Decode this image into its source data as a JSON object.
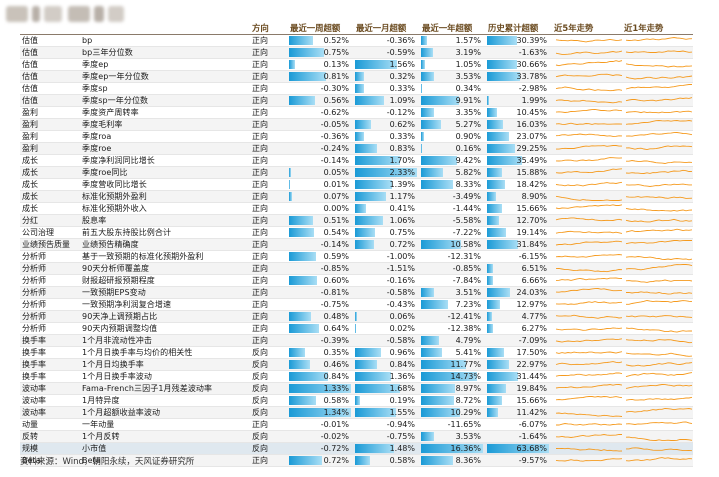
{
  "headers": {
    "category": "",
    "factor": "",
    "direction": "方向",
    "week": "最近一周超额",
    "month": "最近一月超额",
    "year": "最近一年超额",
    "cum": "历史累计超额",
    "trend5y": "近5年走势",
    "trend1y": "近1年走势"
  },
  "colors": {
    "bar": "#1a9ad6",
    "sparkline": "#f59a1e",
    "header_text": "#6a4a1f"
  },
  "rows": [
    {
      "category": "估值",
      "factor": "bp",
      "direction": "正向",
      "week": "0.52%",
      "month": "-0.36%",
      "year": "1.57%",
      "cum": "30.39%"
    },
    {
      "category": "估值",
      "factor": "bp三年分位数",
      "direction": "正向",
      "week": "0.75%",
      "month": "-0.59%",
      "year": "3.19%",
      "cum": "-1.63%"
    },
    {
      "category": "估值",
      "factor": "季度ep",
      "direction": "正向",
      "week": "0.13%",
      "month": "1.56%",
      "year": "1.05%",
      "cum": "30.66%"
    },
    {
      "category": "估值",
      "factor": "季度ep一年分位数",
      "direction": "正向",
      "week": "0.81%",
      "month": "0.32%",
      "year": "3.53%",
      "cum": "33.78%"
    },
    {
      "category": "估值",
      "factor": "季度sp",
      "direction": "正向",
      "week": "-0.30%",
      "month": "0.33%",
      "year": "0.34%",
      "cum": "-2.98%"
    },
    {
      "category": "估值",
      "factor": "季度sp一年分位数",
      "direction": "正向",
      "week": "0.56%",
      "month": "1.09%",
      "year": "9.91%",
      "cum": "1.99%"
    },
    {
      "category": "盈利",
      "factor": "季度资产周转率",
      "direction": "正向",
      "week": "-0.62%",
      "month": "-0.12%",
      "year": "3.35%",
      "cum": "10.45%"
    },
    {
      "category": "盈利",
      "factor": "季度毛利率",
      "direction": "正向",
      "week": "-0.05%",
      "month": "0.62%",
      "year": "5.27%",
      "cum": "16.03%"
    },
    {
      "category": "盈利",
      "factor": "季度roa",
      "direction": "正向",
      "week": "-0.36%",
      "month": "0.33%",
      "year": "0.90%",
      "cum": "23.07%"
    },
    {
      "category": "盈利",
      "factor": "季度roe",
      "direction": "正向",
      "week": "-0.24%",
      "month": "0.83%",
      "year": "0.16%",
      "cum": "29.25%"
    },
    {
      "category": "成长",
      "factor": "季度净利润同比增长",
      "direction": "正向",
      "week": "-0.14%",
      "month": "1.70%",
      "year": "9.42%",
      "cum": "35.49%"
    },
    {
      "category": "成长",
      "factor": "季度roe同比",
      "direction": "正向",
      "week": "0.05%",
      "month": "2.33%",
      "year": "5.82%",
      "cum": "15.88%"
    },
    {
      "category": "成长",
      "factor": "季度营收同比增长",
      "direction": "正向",
      "week": "0.01%",
      "month": "1.39%",
      "year": "8.33%",
      "cum": "18.42%"
    },
    {
      "category": "成长",
      "factor": "标准化预期外盈利",
      "direction": "正向",
      "week": "0.07%",
      "month": "1.17%",
      "year": "-3.49%",
      "cum": "8.90%"
    },
    {
      "category": "成长",
      "factor": "标准化预期外收入",
      "direction": "正向",
      "week": "0.00%",
      "month": "0.41%",
      "year": "-1.44%",
      "cum": "15.66%"
    },
    {
      "category": "分红",
      "factor": "股息率",
      "direction": "正向",
      "week": "0.51%",
      "month": "1.06%",
      "year": "-5.58%",
      "cum": "12.70%"
    },
    {
      "category": "公司治理",
      "factor": "前五大股东持股比例合计",
      "direction": "正向",
      "week": "0.54%",
      "month": "0.75%",
      "year": "-7.22%",
      "cum": "19.14%"
    },
    {
      "category": "业绩预告质量",
      "factor": "业绩预告精确度",
      "direction": "正向",
      "week": "-0.14%",
      "month": "0.72%",
      "year": "10.58%",
      "cum": "31.84%"
    },
    {
      "category": "分析师",
      "factor": "基于一致预期的标准化预期外盈利",
      "direction": "正向",
      "week": "0.59%",
      "month": "-1.00%",
      "year": "-12.31%",
      "cum": "-6.15%"
    },
    {
      "category": "分析师",
      "factor": "90天分析师覆盖度",
      "direction": "正向",
      "week": "-0.85%",
      "month": "-1.51%",
      "year": "-0.85%",
      "cum": "6.51%"
    },
    {
      "category": "分析师",
      "factor": "财报超研报预期程度",
      "direction": "正向",
      "week": "0.60%",
      "month": "-0.16%",
      "year": "-7.84%",
      "cum": "6.66%"
    },
    {
      "category": "分析师",
      "factor": "一致预期EPS变动",
      "direction": "正向",
      "week": "-0.81%",
      "month": "-0.58%",
      "year": "3.51%",
      "cum": "24.03%"
    },
    {
      "category": "分析师",
      "factor": "一致预期净利润复合增速",
      "direction": "正向",
      "week": "-0.75%",
      "month": "-0.43%",
      "year": "7.23%",
      "cum": "12.97%"
    },
    {
      "category": "分析师",
      "factor": "90天净上调预期占比",
      "direction": "正向",
      "week": "0.48%",
      "month": "0.06%",
      "year": "-12.41%",
      "cum": "4.77%"
    },
    {
      "category": "分析师",
      "factor": "90天内预期调整均值",
      "direction": "正向",
      "week": "0.64%",
      "month": "0.02%",
      "year": "-12.38%",
      "cum": "6.27%"
    },
    {
      "category": "换手率",
      "factor": "1个月非流动性冲击",
      "direction": "正向",
      "week": "-0.39%",
      "month": "-0.58%",
      "year": "4.79%",
      "cum": "-7.09%"
    },
    {
      "category": "换手率",
      "factor": "1个月日换手率与均价的相关性",
      "direction": "反向",
      "week": "0.35%",
      "month": "0.96%",
      "year": "5.41%",
      "cum": "17.50%"
    },
    {
      "category": "换手率",
      "factor": "1个月日均换手率",
      "direction": "反向",
      "week": "0.46%",
      "month": "0.84%",
      "year": "11.77%",
      "cum": "22.97%"
    },
    {
      "category": "换手率",
      "factor": "1个月日换手率波动",
      "direction": "反向",
      "week": "0.84%",
      "month": "1.36%",
      "year": "14.73%",
      "cum": "31.44%"
    },
    {
      "category": "波动率",
      "factor": "Fama-French三因子1月残差波动率",
      "direction": "反向",
      "week": "1.33%",
      "month": "1.68%",
      "year": "8.97%",
      "cum": "19.84%"
    },
    {
      "category": "波动率",
      "factor": "1月特异度",
      "direction": "反向",
      "week": "0.58%",
      "month": "0.19%",
      "year": "8.72%",
      "cum": "15.66%"
    },
    {
      "category": "波动率",
      "factor": "1个月超额收益率波动",
      "direction": "反向",
      "week": "1.34%",
      "month": "1.55%",
      "year": "10.29%",
      "cum": "11.42%"
    },
    {
      "category": "动量",
      "factor": "一年动量",
      "direction": "正向",
      "week": "-0.01%",
      "month": "-0.94%",
      "year": "-11.65%",
      "cum": "-6.07%"
    },
    {
      "category": "反转",
      "factor": "1个月反转",
      "direction": "反向",
      "week": "-0.02%",
      "month": "-0.75%",
      "year": "3.53%",
      "cum": "-1.64%"
    },
    {
      "category": "规模",
      "factor": "小市值",
      "direction": "反向",
      "week": "-0.72%",
      "month": "1.48%",
      "year": "16.36%",
      "cum": "63.68%"
    },
    {
      "category": "Beta",
      "factor": "Beta",
      "direction": "正向",
      "week": "0.72%",
      "month": "0.58%",
      "year": "8.36%",
      "cum": "-9.57%"
    }
  ],
  "source": "资料来源：Wind，朝阳永续，天风证券研究所"
}
